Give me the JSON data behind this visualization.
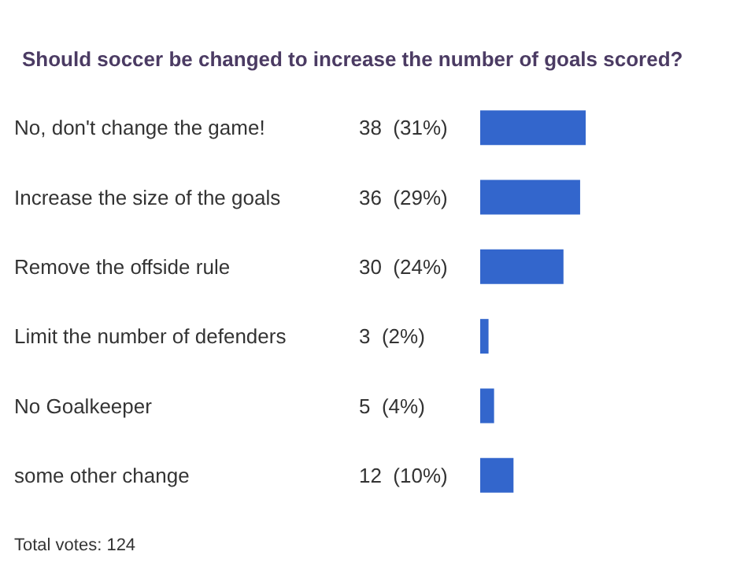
{
  "chart_data": {
    "type": "bar",
    "orientation": "horizontal",
    "title": "Should soccer be changed to increase the number of goals scored?",
    "categories": [
      "No, don't change the game!",
      "Increase the size of the goals",
      "Remove the offside rule",
      "Limit the number of defenders",
      "No Goalkeeper",
      "some other change"
    ],
    "values": [
      38,
      36,
      30,
      3,
      5,
      12
    ],
    "value_labels": [
      "38  (31%)",
      "36  (29%)",
      "30  (24%)",
      "3  (2%)",
      "5  (4%)",
      "12  (10%)"
    ],
    "color": "#3366cc",
    "annotations": [
      "Total votes: 124"
    ]
  }
}
